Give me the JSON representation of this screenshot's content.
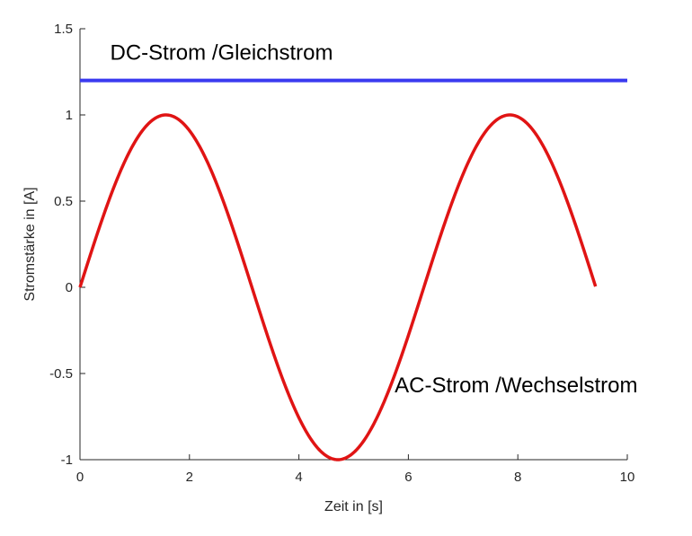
{
  "chart_data": {
    "type": "line",
    "xlabel": "Zeit in [s]",
    "ylabel": "Stromstärke in [A]",
    "xlim": [
      0,
      10
    ],
    "ylim": [
      -1,
      1.5
    ],
    "xticks": [
      "0",
      "2",
      "4",
      "6",
      "8",
      "10"
    ],
    "yticks": [
      "-1",
      "-0.5",
      "0",
      "0.5",
      "1",
      "1.5"
    ],
    "grid": false,
    "series": [
      {
        "name": "DC",
        "color": "#3a3af0",
        "function": "constant",
        "value": 1.2,
        "x_range": [
          0,
          10
        ]
      },
      {
        "name": "AC",
        "color": "#e01414",
        "function": "sin(x)",
        "x_range": [
          0,
          9.42
        ]
      }
    ],
    "annotations": [
      {
        "text": "DC-Strom /Gleichstrom",
        "x": 0.55,
        "y": 1.32
      },
      {
        "text": "AC-Strom /Wechselstrom",
        "x": 5.75,
        "y": -0.61
      }
    ]
  }
}
